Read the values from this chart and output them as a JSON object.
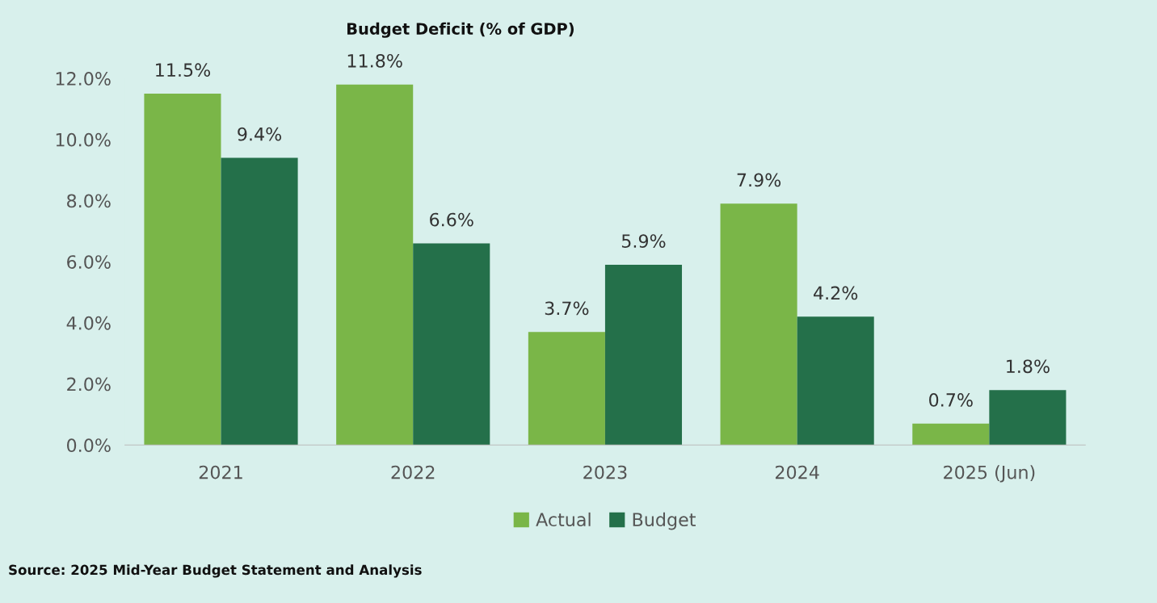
{
  "chart_data": {
    "type": "bar",
    "title": "Budget Deficit (% of GDP)",
    "categories": [
      "2021",
      "2022",
      "2023",
      "2024",
      "2025 (Jun)"
    ],
    "series": [
      {
        "name": "Actual",
        "color": "#7ab648",
        "values": [
          11.5,
          11.8,
          3.7,
          7.9,
          0.7
        ],
        "value_labels": [
          "11.5%",
          "11.8%",
          "3.7%",
          "7.9%",
          "0.7%"
        ]
      },
      {
        "name": "Budget",
        "color": "#24704a",
        "values": [
          9.4,
          6.6,
          5.9,
          4.2,
          1.8
        ],
        "value_labels": [
          "9.4%",
          "6.6%",
          "5.9%",
          "4.2%",
          "1.8%"
        ]
      }
    ],
    "ylim": [
      0,
      12
    ],
    "yticks": [
      {
        "value": 0,
        "label": "0.0%"
      },
      {
        "value": 2,
        "label": "2.0%"
      },
      {
        "value": 4,
        "label": "4.0%"
      },
      {
        "value": 6,
        "label": "6.0%"
      },
      {
        "value": 8,
        "label": "8.0%"
      },
      {
        "value": 10,
        "label": "10.0%"
      },
      {
        "value": 12,
        "label": "12.0%"
      }
    ],
    "grid": false,
    "legend": "bottom",
    "annotations": [
      "Source: 2025 Mid-Year Budget Statement and Analysis"
    ]
  }
}
